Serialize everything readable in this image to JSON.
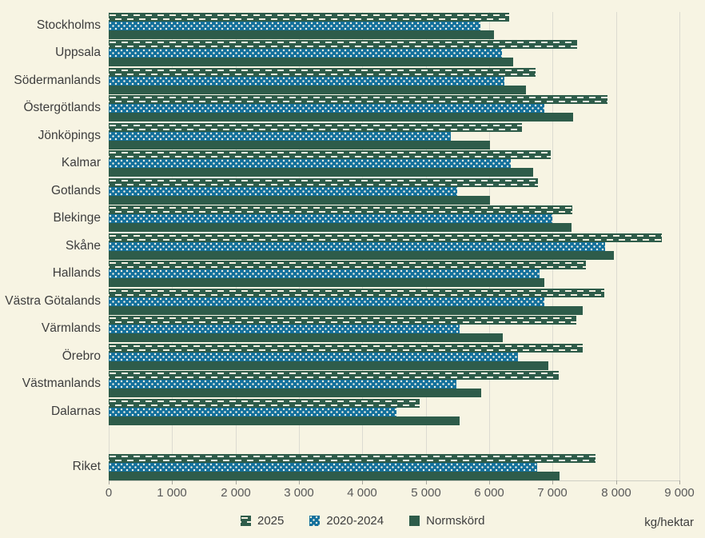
{
  "chart_data": {
    "type": "bar",
    "orientation": "horizontal",
    "title": "",
    "unit_label": "kg/hektar",
    "categories": [
      "Stockholms",
      "Uppsala",
      "Södermanlands",
      "Östergötlands",
      "Jönköpings",
      "Kalmar",
      "Gotlands",
      "Blekinge",
      "Skåne",
      "Hallands",
      "Västra Götalands",
      "Värmlands",
      "Örebro",
      "Västmanlands",
      "Dalarnas",
      "Riket"
    ],
    "gap_before_index": 15,
    "series": [
      {
        "name": "2025",
        "pattern": "dashed",
        "color": "#2e5c4a",
        "values": [
          6310,
          7380,
          6730,
          7860,
          6520,
          6970,
          6770,
          7310,
          8720,
          7520,
          7820,
          7370,
          7480,
          7090,
          4900,
          7680
        ]
      },
      {
        "name": "2020-2024",
        "pattern": "dotted",
        "color": "#13709c",
        "values": [
          5860,
          6200,
          6240,
          6870,
          5400,
          6340,
          5490,
          7000,
          7830,
          6790,
          6870,
          5530,
          6450,
          5480,
          4540,
          6760
        ]
      },
      {
        "name": "Normskörd",
        "pattern": "solid",
        "color": "#2e5c4a",
        "values": [
          6080,
          6380,
          6580,
          7320,
          6010,
          6690,
          6010,
          7300,
          7960,
          6870,
          7480,
          6210,
          6930,
          5870,
          5530,
          7110
        ]
      }
    ],
    "xlim": [
      0,
      9000
    ],
    "xticks": [
      0,
      1000,
      2000,
      3000,
      4000,
      5000,
      6000,
      7000,
      8000,
      9000
    ],
    "xtick_labels": [
      "0",
      "1 000",
      "2 000",
      "3 000",
      "4 000",
      "5 000",
      "6 000",
      "7 000",
      "8 000",
      "9 000"
    ],
    "grid": true,
    "legend_position": "bottom"
  },
  "colors": {
    "background": "#f7f4e3",
    "bar_green": "#2e5c4a",
    "bar_blue": "#13709c",
    "gridline": "#dcdbd1",
    "pattern_mark": "#f3f0e1",
    "category_text": "#3d3d3d",
    "tick_text": "#595959"
  }
}
